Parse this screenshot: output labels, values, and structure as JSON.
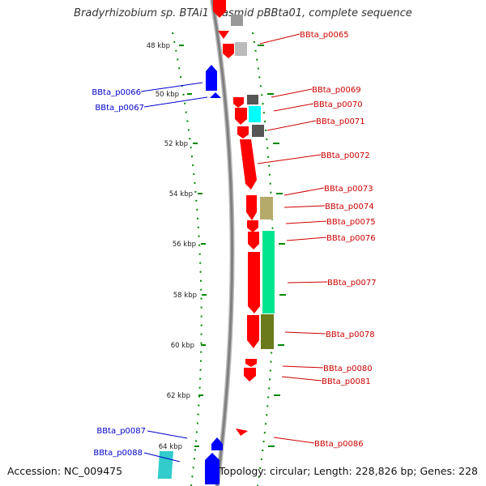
{
  "title": "Bradyrhizobium sp. BTAi1 plasmid pBBta01, complete sequence",
  "accession_label": "Accession: NC_009475",
  "topology_label": "Topology: circular; Length: 228,826 bp; Genes: 228",
  "scale_ticks": [
    "48 kbp",
    "50 kbp",
    "52 kbp",
    "54 kbp",
    "56 kbp",
    "58 kbp",
    "60 kbp",
    "62 kbp",
    "64 kbp"
  ],
  "colors": {
    "forward_label": "#cc0000",
    "reverse_label": "#0000cc",
    "backbone": "#888888",
    "tick_marks": "#008800"
  },
  "genes": [
    {
      "name": "BBta_p0065",
      "strand": "forward",
      "color": "#ff0000"
    },
    {
      "name": "BBta_p0066",
      "strand": "reverse",
      "color": "#0000ff"
    },
    {
      "name": "BBta_p0067",
      "strand": "reverse",
      "color": "#0000ff"
    },
    {
      "name": "BBta_p0069",
      "strand": "forward",
      "color": "#ff0000"
    },
    {
      "name": "BBta_p0070",
      "strand": "forward",
      "color": "#ff0000"
    },
    {
      "name": "BBta_p0071",
      "strand": "forward",
      "color": "#ff0000"
    },
    {
      "name": "BBta_p0072",
      "strand": "forward",
      "color": "#ff0000"
    },
    {
      "name": "BBta_p0073",
      "strand": "forward",
      "color": "#ff0000"
    },
    {
      "name": "BBta_p0074",
      "strand": "forward",
      "color": "#ff0000"
    },
    {
      "name": "BBta_p0075",
      "strand": "forward",
      "color": "#ff0000"
    },
    {
      "name": "BBta_p0076",
      "strand": "forward",
      "color": "#ff0000"
    },
    {
      "name": "BBta_p0077",
      "strand": "forward",
      "color": "#ff0000"
    },
    {
      "name": "BBta_p0078",
      "strand": "forward",
      "color": "#ff0000"
    },
    {
      "name": "BBta_p0080",
      "strand": "forward",
      "color": "#ff0000"
    },
    {
      "name": "BBta_p0081",
      "strand": "forward",
      "color": "#ff0000"
    },
    {
      "name": "BBta_p0086",
      "strand": "forward",
      "color": "#ff0000"
    },
    {
      "name": "BBta_p0087",
      "strand": "reverse",
      "color": "#0000ff"
    },
    {
      "name": "BBta_p0088",
      "strand": "reverse",
      "color": "#0000ff"
    }
  ]
}
